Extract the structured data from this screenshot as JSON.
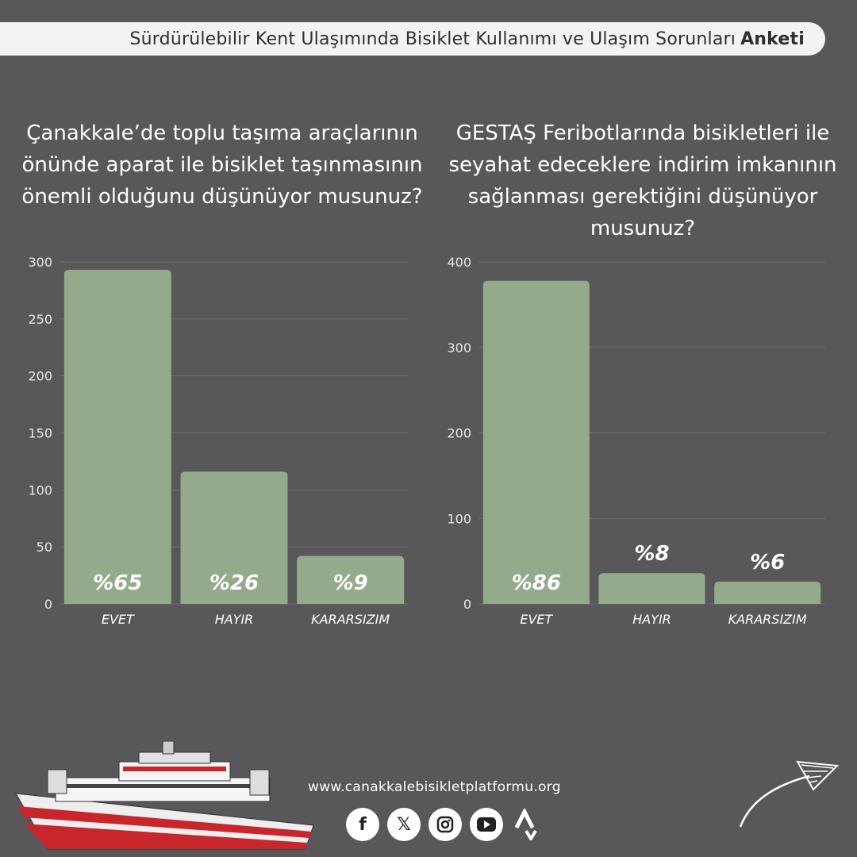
{
  "header": {
    "title_main": "Sürdürülebilir Kent Ulaşımında Bisiklet Kullanımı ve Ulaşım Sorunları",
    "title_bold": "Anketi"
  },
  "questions": {
    "q1": "Çanakkale’de toplu taşıma araçlarının önünde aparat ile bisiklet taşınmasının önemli olduğunu düşünüyor musunuz?",
    "q2": "GESTAŞ Feribotlarında bisikletleri ile seyahat edeceklere indirim imkanının sağlanması gerektiğini düşünüyor musunuz?"
  },
  "chart_data": [
    {
      "type": "bar",
      "categories": [
        "EVET",
        "HAYIR",
        "KARARSIZIM"
      ],
      "values": [
        293,
        116,
        42
      ],
      "data_labels": [
        "%65",
        "%26",
        "%9"
      ],
      "ylim": [
        0,
        300
      ],
      "yticks": [
        0,
        50,
        100,
        150,
        200,
        250,
        300
      ],
      "grid": true,
      "bar_color": "#94aa8a"
    },
    {
      "type": "bar",
      "categories": [
        "EVET",
        "HAYIR",
        "KARARSIZIM"
      ],
      "values": [
        378,
        36,
        26
      ],
      "data_labels": [
        "%86",
        "%8",
        "%6"
      ],
      "ylim": [
        0,
        400
      ],
      "yticks": [
        0,
        100,
        200,
        300,
        400
      ],
      "grid": true,
      "bar_color": "#94aa8a"
    }
  ],
  "footer": {
    "url": "www.canakkalebisikletplatformu.org",
    "social_icons": [
      "facebook-icon",
      "x-icon",
      "instagram-icon",
      "youtube-icon",
      "strava-icon"
    ]
  }
}
